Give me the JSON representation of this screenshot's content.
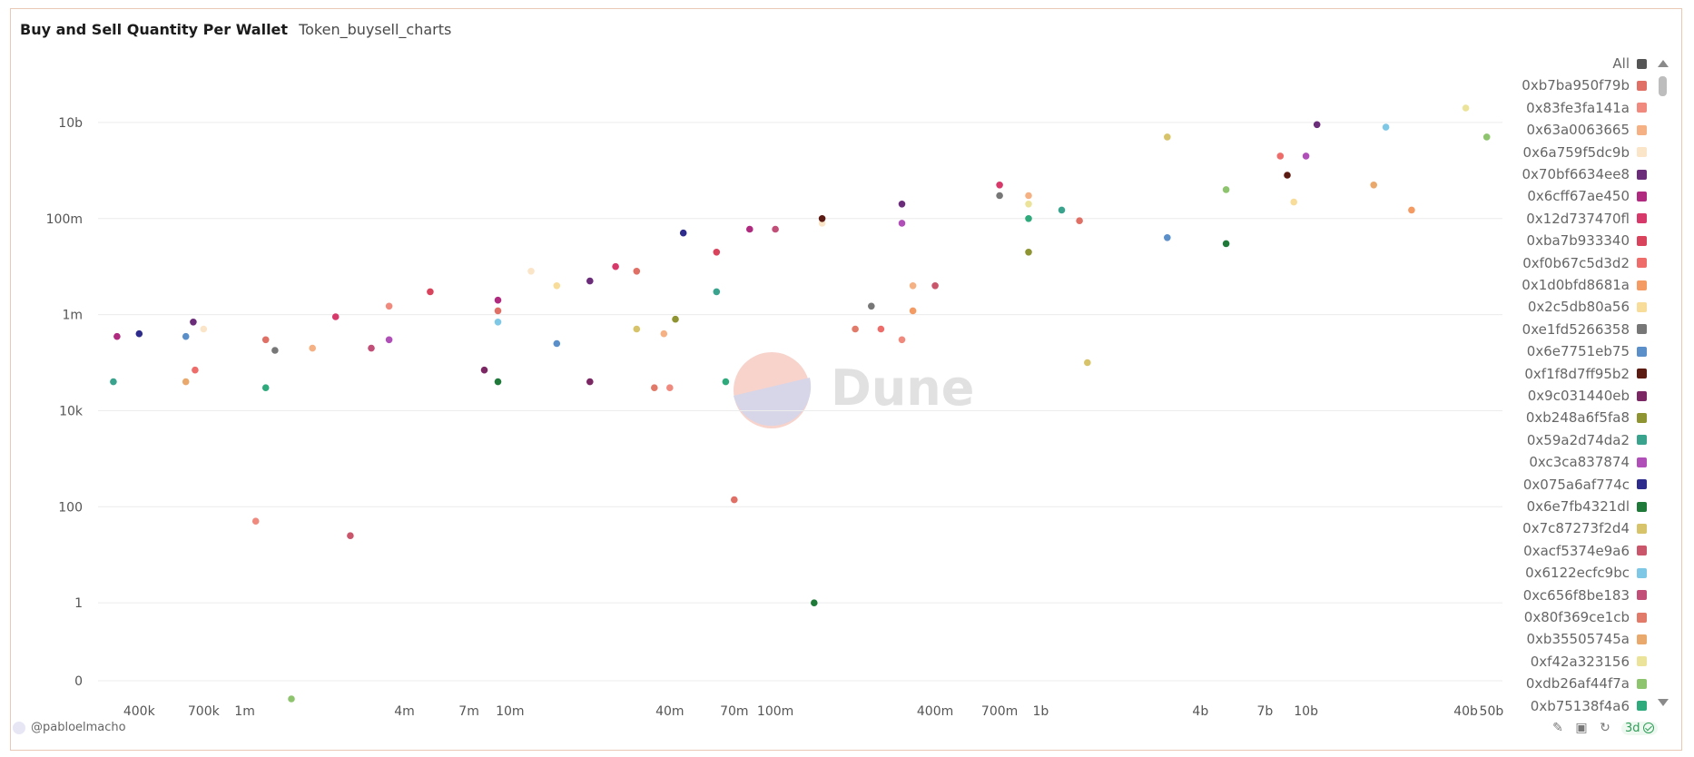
{
  "header": {
    "title": "Buy and Sell Quantity Per Wallet",
    "subtitle": "Token_buysell_charts"
  },
  "footer": {
    "author": "@pabloelmacho",
    "refresh_age": "3d"
  },
  "watermark": "Dune",
  "legend": {
    "items": [
      {
        "label": "All",
        "color": "#555555"
      },
      {
        "label": "0xb7ba950f79b",
        "color": "#e06f66"
      },
      {
        "label": "0x83fe3fa141a",
        "color": "#f08a7e"
      },
      {
        "label": "0x63a0063665",
        "color": "#f5b183"
      },
      {
        "label": "0x6a759f5dc9b",
        "color": "#fbe5c8"
      },
      {
        "label": "0x70bf6634ee8",
        "color": "#6b2d7a"
      },
      {
        "label": "0x6cff67ae450",
        "color": "#b02a80"
      },
      {
        "label": "0x12d737470fl",
        "color": "#d6396a"
      },
      {
        "label": "0xba7b933340",
        "color": "#d9435c"
      },
      {
        "label": "0xf0b67c5d3d2",
        "color": "#ee6d6a"
      },
      {
        "label": "0x1d0bfd8681a",
        "color": "#f39b63"
      },
      {
        "label": "0x2c5db80a56",
        "color": "#f8dc9a"
      },
      {
        "label": "0xe1fd5266358",
        "color": "#777777"
      },
      {
        "label": "0x6e7751eb75",
        "color": "#5b8fc9"
      },
      {
        "label": "0xf1f8d7ff95b2",
        "color": "#5b1a12"
      },
      {
        "label": "0x9c031440eb",
        "color": "#7a2764"
      },
      {
        "label": "0xb248a6f5fa8",
        "color": "#8e9431"
      },
      {
        "label": "0x59a2d74da2",
        "color": "#3aa38d"
      },
      {
        "label": "0xc3ca837874",
        "color": "#b04fb7"
      },
      {
        "label": "0x075a6af774c",
        "color": "#2d2b8c"
      },
      {
        "label": "0x6e7fb4321dl",
        "color": "#1f7a3a"
      },
      {
        "label": "0x7c87273f2d4",
        "color": "#d6c36a"
      },
      {
        "label": "0xacf5374e9a6",
        "color": "#c9566b"
      },
      {
        "label": "0x6122ecfc9bc",
        "color": "#7ec8e6"
      },
      {
        "label": "0xc656f8be183",
        "color": "#c24f78"
      },
      {
        "label": "0x80f369ce1cb",
        "color": "#e17a68"
      },
      {
        "label": "0xb35505745a",
        "color": "#e9a86c"
      },
      {
        "label": "0xf42a323156",
        "color": "#ece39a"
      },
      {
        "label": "0xdb26af44f7a",
        "color": "#8fc46f"
      },
      {
        "label": "0xb75138f4a6",
        "color": "#2eaa7c"
      }
    ]
  },
  "chart_data": {
    "type": "scatter",
    "title": "Buy and Sell Quantity Per Wallet",
    "xscale": "log",
    "yscale": "log",
    "x_ticks": [
      "400k",
      "700k",
      "1m",
      "4m",
      "7m",
      "10m",
      "40m",
      "70m",
      "100m",
      "400m",
      "700m",
      "1b",
      "4b",
      "7b",
      "10b",
      "40b",
      "50b"
    ],
    "x_tick_values": [
      400000,
      700000,
      1000000,
      4000000,
      7000000,
      10000000,
      40000000,
      70000000,
      100000000,
      400000000,
      700000000,
      1000000000,
      4000000000,
      7000000000,
      10000000000,
      40000000000,
      50000000000
    ],
    "y_ticks": [
      "10b",
      "100m",
      "1m",
      "10k",
      "100",
      "1",
      "0"
    ],
    "y_tick_values": [
      10000000000,
      100000000,
      1000000,
      10000,
      100,
      1,
      0
    ],
    "xlim": [
      280000,
      55000000000
    ],
    "ylim": [
      0.01,
      100000000000
    ],
    "grid": true,
    "legend_position": "right",
    "series": [
      {
        "name": "0xb7ba950f79b",
        "points": [
          [
            1200000,
            300000
          ],
          [
            9000000,
            1200000
          ],
          [
            30000000,
            8000000
          ],
          [
            70000000,
            140
          ],
          [
            1400000000,
            90000000
          ]
        ]
      },
      {
        "name": "0x83fe3fa141a",
        "points": [
          [
            1100000,
            50
          ],
          [
            3500000,
            1500000
          ],
          [
            40000000,
            30000
          ],
          [
            300000000,
            300000
          ]
        ]
      },
      {
        "name": "0x63a0063665",
        "points": [
          [
            1800000,
            200000
          ],
          [
            38000000,
            400000
          ],
          [
            330000000,
            4000000
          ],
          [
            900000000,
            300000000
          ]
        ]
      },
      {
        "name": "0x6a759f5dc9b",
        "points": [
          [
            700000,
            500000
          ],
          [
            12000000,
            8000000
          ],
          [
            150000000,
            80000000
          ]
        ]
      },
      {
        "name": "0x70bf6634ee8",
        "points": [
          [
            640000,
            700000
          ],
          [
            20000000,
            5000000
          ],
          [
            300000000,
            200000000
          ],
          [
            11000000000,
            9000000000
          ]
        ]
      },
      {
        "name": "0x6cff67ae450",
        "points": [
          [
            330000,
            350000
          ],
          [
            9000000,
            2000000
          ],
          [
            80000000,
            60000000
          ]
        ]
      },
      {
        "name": "0x12d737470fl",
        "points": [
          [
            2200000,
            900000
          ],
          [
            25000000,
            10000000
          ],
          [
            700000000,
            500000000
          ]
        ]
      },
      {
        "name": "0xba7b933340",
        "points": [
          [
            5000000,
            3000000
          ],
          [
            60000000,
            20000000
          ]
        ]
      },
      {
        "name": "0xf0b67c5d3d2",
        "points": [
          [
            650000,
            70000
          ],
          [
            250000000,
            500000
          ],
          [
            8000000000,
            2000000000
          ]
        ]
      },
      {
        "name": "0x1d0bfd8681a",
        "points": [
          [
            330000000,
            1200000
          ],
          [
            25000000000,
            150000000
          ]
        ]
      },
      {
        "name": "0x2c5db80a56",
        "points": [
          [
            9000000000,
            220000000
          ],
          [
            15000000,
            4000000
          ]
        ]
      },
      {
        "name": "0xe1fd5266358",
        "points": [
          [
            1300000,
            180000
          ],
          [
            230000000,
            1500000
          ],
          [
            700000000,
            300000000
          ]
        ]
      },
      {
        "name": "0x6e7751eb75",
        "points": [
          [
            600000,
            350000
          ],
          [
            15000000,
            250000
          ],
          [
            3000000000,
            40000000
          ]
        ]
      },
      {
        "name": "0xf1f8d7ff95b2",
        "points": [
          [
            150000000,
            100000000
          ],
          [
            8500000000,
            800000000
          ]
        ]
      },
      {
        "name": "0x9c031440eb",
        "points": [
          [
            20000000,
            40000
          ],
          [
            8000000,
            70000
          ]
        ]
      },
      {
        "name": "0xb248a6f5fa8",
        "points": [
          [
            42000000,
            800000
          ],
          [
            900000000,
            20000000
          ]
        ]
      },
      {
        "name": "0x59a2d74da2",
        "points": [
          [
            320000,
            40000
          ],
          [
            60000000,
            3000000
          ],
          [
            1200000000,
            150000000
          ]
        ]
      },
      {
        "name": "0xc3ca837874",
        "points": [
          [
            3500000,
            300000
          ],
          [
            300000000,
            80000000
          ],
          [
            10000000000,
            2000000000
          ]
        ]
      },
      {
        "name": "0x075a6af774c",
        "points": [
          [
            400000,
            400000
          ],
          [
            45000000,
            50000000
          ]
        ]
      },
      {
        "name": "0x6e7fb4321dl",
        "points": [
          [
            140000000,
            1
          ],
          [
            5000000000,
            30000000
          ],
          [
            9000000,
            40000
          ]
        ]
      },
      {
        "name": "0x7c87273f2d4",
        "points": [
          [
            1500000000,
            100000
          ],
          [
            30000000,
            500000
          ],
          [
            3000000000,
            5000000000
          ]
        ]
      },
      {
        "name": "0xacf5374e9a6",
        "points": [
          [
            2500000,
            25
          ],
          [
            400000000,
            4000000
          ]
        ]
      },
      {
        "name": "0x6122ecfc9bc",
        "points": [
          [
            9000000,
            700000
          ],
          [
            20000000000,
            8000000000
          ]
        ]
      },
      {
        "name": "0xc656f8be183",
        "points": [
          [
            3000000,
            200000
          ],
          [
            100000000,
            60000000
          ]
        ]
      },
      {
        "name": "0x80f369ce1cb",
        "points": [
          [
            35000000,
            30000
          ],
          [
            200000000,
            500000
          ]
        ]
      },
      {
        "name": "0xb35505745a",
        "points": [
          [
            18000000000,
            500000000
          ],
          [
            600000,
            40000
          ]
        ]
      },
      {
        "name": "0xf42a323156",
        "points": [
          [
            900000000,
            200000000
          ],
          [
            40000000000,
            20000000000
          ]
        ]
      },
      {
        "name": "0xdb26af44f7a",
        "points": [
          [
            1500000,
            0.01
          ],
          [
            48000000000,
            5000000000
          ],
          [
            5000000000,
            400000000
          ]
        ]
      },
      {
        "name": "0xb75138f4a6",
        "points": [
          [
            1200000,
            30000
          ],
          [
            65000000,
            40000
          ],
          [
            900000000,
            100000000
          ]
        ]
      }
    ]
  }
}
